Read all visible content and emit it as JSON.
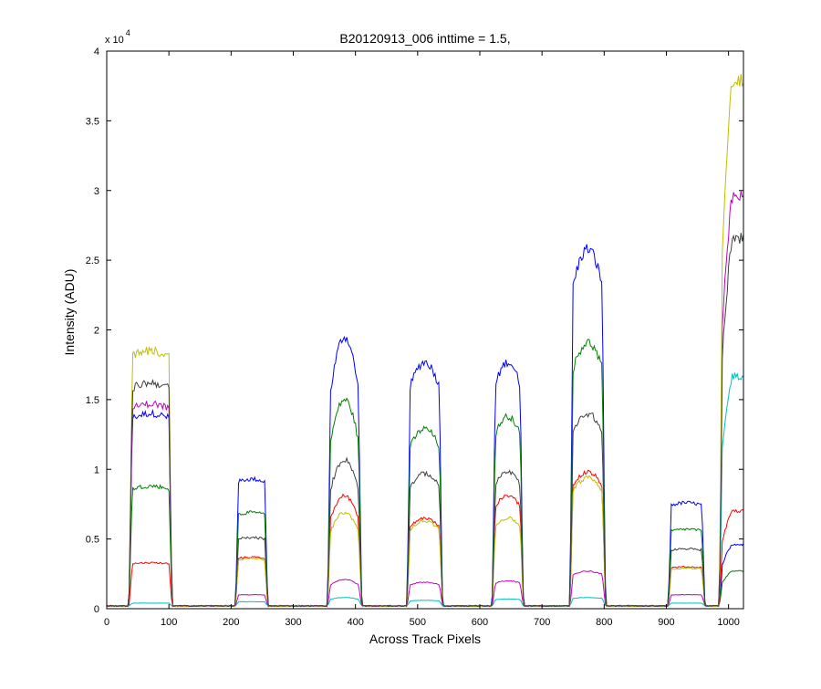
{
  "chart_data": {
    "type": "line",
    "title": "B20120913_006 inttime = 1.5,",
    "xlabel": "Across Track Pixels",
    "ylabel": "Intensity (ADU)",
    "y_exponent_label": "x 10",
    "y_exponent_power": "4",
    "xlim": [
      0,
      1024
    ],
    "ylim": [
      0,
      40000
    ],
    "x_ticks": [
      0,
      100,
      200,
      300,
      400,
      500,
      600,
      700,
      800,
      900,
      1000
    ],
    "x_tick_labels": [
      "0",
      "100",
      "200",
      "300",
      "400",
      "500",
      "600",
      "700",
      "800",
      "900",
      "1000"
    ],
    "y_ticks": [
      0,
      5000,
      10000,
      15000,
      20000,
      25000,
      30000,
      35000,
      40000
    ],
    "y_tick_labels": [
      "0",
      "0.5",
      "1",
      "1.5",
      "2",
      "2.5",
      "3",
      "3.5",
      "4"
    ],
    "grid": false,
    "legend": "none",
    "background_level": 200,
    "ramp_width": 5,
    "segments": [
      {
        "x0": 36,
        "x1": 105,
        "shape": "flat"
      },
      {
        "x0": 207,
        "x1": 259,
        "shape": "flat"
      },
      {
        "x0": 355,
        "x1": 410,
        "shape": "peak"
      },
      {
        "x0": 483,
        "x1": 540,
        "shape": "plateau"
      },
      {
        "x0": 620,
        "x1": 670,
        "shape": "plateau"
      },
      {
        "x0": 745,
        "x1": 802,
        "shape": "plateau"
      },
      {
        "x0": 903,
        "x1": 962,
        "shape": "flat"
      },
      {
        "x0": 985,
        "x1": 1024,
        "shape": "rise"
      }
    ],
    "series": [
      {
        "color": "#0000ff",
        "levels": [
          14000,
          9300,
          19500,
          17700,
          17700,
          25800,
          7600,
          4600
        ]
      },
      {
        "color": "#008000",
        "levels": [
          8800,
          6900,
          15000,
          12900,
          13800,
          19100,
          5700,
          2700
        ]
      },
      {
        "color": "#ff0000",
        "levels": [
          3300,
          3700,
          8100,
          6500,
          8100,
          9800,
          3000,
          7000
        ]
      },
      {
        "color": "#00bfbf",
        "levels": [
          400,
          500,
          800,
          600,
          700,
          800,
          400,
          16700
        ]
      },
      {
        "color": "#bf00bf",
        "levels": [
          14700,
          1000,
          2100,
          1900,
          2000,
          2700,
          1000,
          29500
        ]
      },
      {
        "color": "#bfbf00",
        "levels": [
          18500,
          3600,
          6900,
          6300,
          6500,
          9400,
          2900,
          37800
        ]
      },
      {
        "color": "#404040",
        "levels": [
          16200,
          5100,
          10700,
          9700,
          9800,
          14000,
          4300,
          26500
        ]
      }
    ]
  }
}
